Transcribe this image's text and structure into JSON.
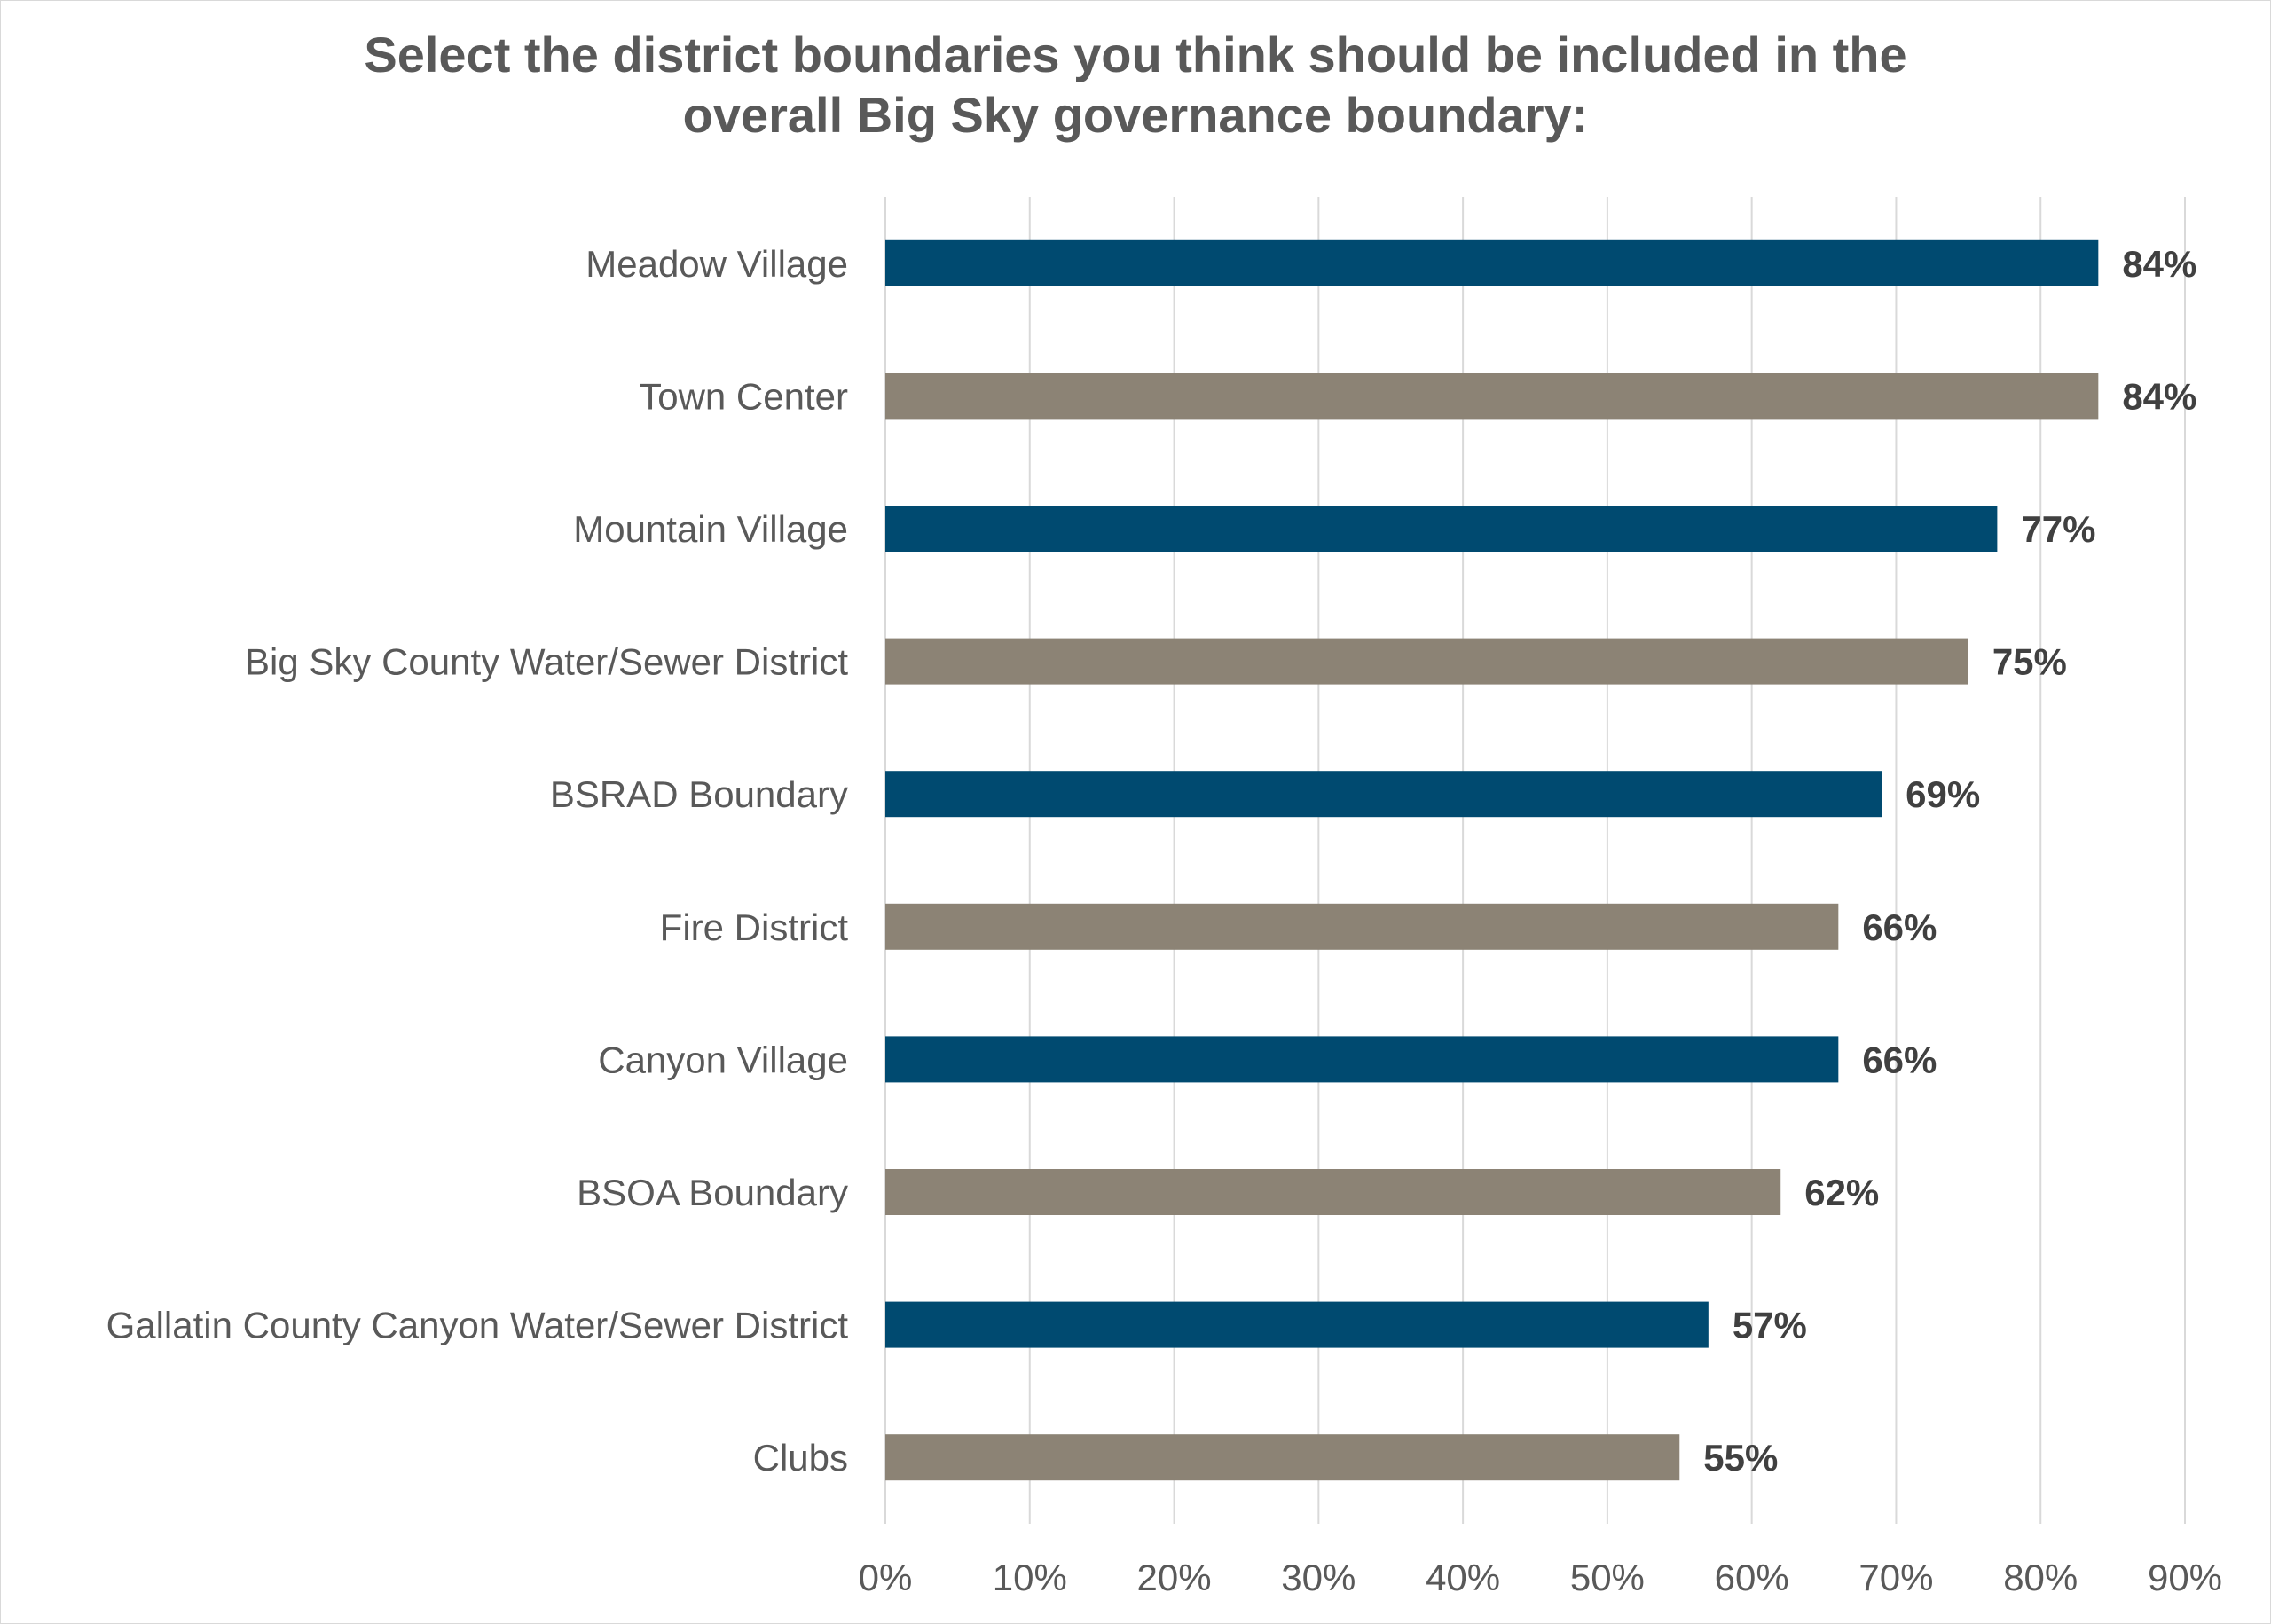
{
  "chart_data": {
    "type": "bar",
    "orientation": "horizontal",
    "title": "Select the district boundaries you think should be included in the overall Big Sky governance boundary:",
    "title_lines": [
      "Select the district boundaries you think should be included in the",
      "overall Big Sky governance boundary:"
    ],
    "categories": [
      "Meadow Village",
      "Town Center",
      "Mountain Village",
      "Big Sky County Water/Sewer District",
      "BSRAD Boundary",
      "Fire District",
      "Canyon Village",
      "BSOA Boundary",
      "Gallatin County Canyon Water/Sewer District",
      "Clubs"
    ],
    "values": [
      84,
      84,
      77,
      75,
      69,
      66,
      66,
      62,
      57,
      55
    ],
    "value_labels": [
      "84%",
      "84%",
      "77%",
      "75%",
      "69%",
      "66%",
      "66%",
      "62%",
      "57%",
      "55%"
    ],
    "xlim": [
      0,
      90
    ],
    "x_ticks": [
      "0%",
      "10%",
      "20%",
      "30%",
      "40%",
      "50%",
      "60%",
      "70%",
      "80%",
      "90%"
    ],
    "xlabel": "",
    "ylabel": "",
    "grid": true,
    "legend": "none",
    "bar_colors": [
      "#004a70",
      "#8c8375"
    ],
    "gridline_color": "#d9d9d9"
  }
}
